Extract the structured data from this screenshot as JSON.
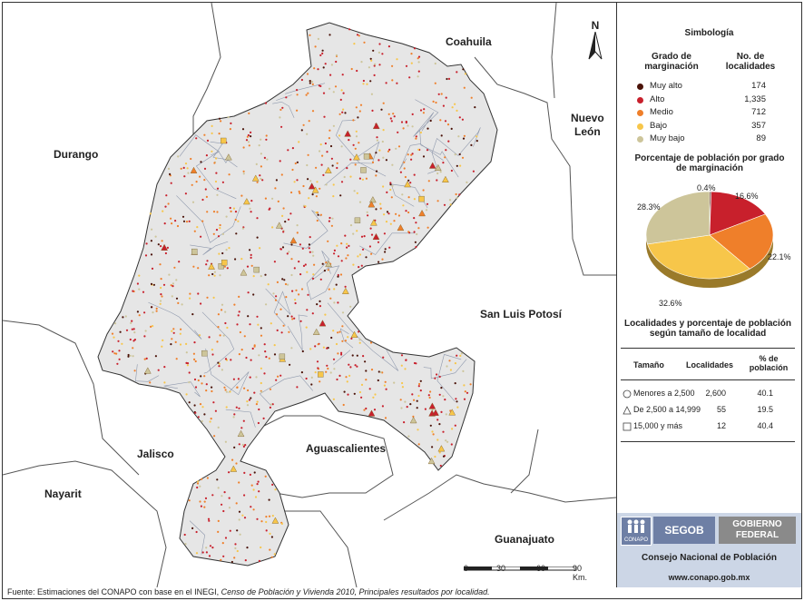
{
  "colors": {
    "muy_alto": "#4a1208",
    "alto": "#c8202c",
    "medio": "#ef7f2a",
    "bajo": "#f7c64a",
    "muy_bajo": "#cdc59a",
    "state_fill": "#e6e6e6",
    "neighbor_border": "#555555",
    "municipal_border": "#8f99ad"
  },
  "map": {
    "state_labels": {
      "coahuila": "Coahuila",
      "nuevo_leon_1": "Nuevo",
      "nuevo_leon_2": "León",
      "durango": "Durango",
      "san_luis_potosi": "San Luis Potosí",
      "aguascalientes": "Aguascalientes",
      "jalisco": "Jalisco",
      "nayarit": "Nayarit",
      "guanajuato": "Guanajuato"
    },
    "north": "N",
    "scale": {
      "ticks": [
        "0",
        "30",
        "60",
        "90 Km."
      ]
    }
  },
  "legend": {
    "title": "Simbología",
    "col1": "Grado de marginación",
    "col2": "No. de localidades",
    "rows": [
      {
        "label": "Muy alto",
        "value": "174",
        "color_key": "muy_alto"
      },
      {
        "label": "Alto",
        "value": "1,335",
        "color_key": "alto"
      },
      {
        "label": "Medio",
        "value": "712",
        "color_key": "medio"
      },
      {
        "label": "Bajo",
        "value": "357",
        "color_key": "bajo"
      },
      {
        "label": "Muy bajo",
        "value": "89",
        "color_key": "muy_bajo"
      }
    ]
  },
  "pie": {
    "title": "Porcentaje de población por grado de marginación",
    "labels": {
      "muy_alto": "0.4%",
      "alto": "16.6%",
      "medio": "22.1%",
      "bajo": "32.6%",
      "muy_bajo": "28.3%"
    }
  },
  "chart_data": {
    "type": "pie",
    "title": "Porcentaje de población por grado de marginación",
    "categories": [
      "Muy alto",
      "Alto",
      "Medio",
      "Bajo",
      "Muy bajo"
    ],
    "values": [
      0.4,
      16.6,
      22.1,
      32.6,
      28.3
    ]
  },
  "size_table": {
    "title": "Localidades y porcentaje de población según tamaño de localidad",
    "headers": {
      "size": "Tamaño",
      "count": "Localidades",
      "pct": "% de población"
    },
    "rows": [
      {
        "symbol": "circle",
        "size": "Menores a 2,500",
        "count": "2,600",
        "pct": "40.1"
      },
      {
        "symbol": "triangle",
        "size": "De 2,500 a 14,999",
        "count": "55",
        "pct": "19.5"
      },
      {
        "symbol": "square",
        "size": "15,000 y más",
        "count": "12",
        "pct": "40.4"
      }
    ]
  },
  "logos": {
    "conapo": "CONAPO",
    "segob": "SEGOB",
    "gobierno_1": "GOBIERNO",
    "gobierno_2": "FEDERAL",
    "consejo": "Consejo Nacional de Población",
    "web": "www.conapo.gob.mx"
  },
  "source": {
    "prefix": "Fuente: Estimaciones del CONAPO con base en el INEGI, ",
    "italic": "Censo de Población y Vivienda 2010, Principales resultados por localidad."
  }
}
